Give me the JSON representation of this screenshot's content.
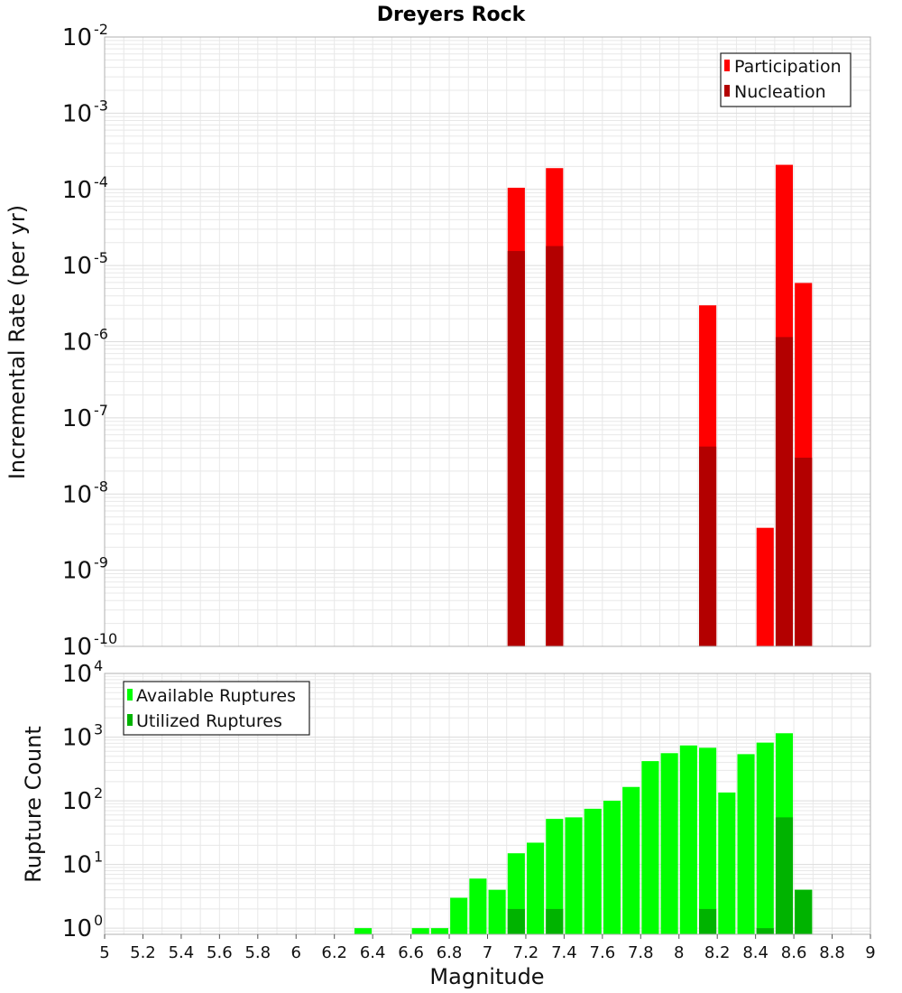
{
  "title": "Dreyers Rock",
  "colors": {
    "participation": "#ff0000",
    "nucleation": "#b30000",
    "available": "#00ff00",
    "utilized": "#00b300"
  },
  "chart_data": [
    {
      "type": "bar",
      "title": "Dreyers Rock",
      "ylabel": "Incremental Rate (per yr)",
      "xlabel": "",
      "yscale": "log",
      "xlim": [
        5,
        9
      ],
      "ylim": [
        1e-10,
        0.01
      ],
      "ytick_exponents": [
        -10,
        -9,
        -8,
        -7,
        -6,
        -5,
        -4,
        -3,
        -2
      ],
      "legend_position": "top-right",
      "bar_width": 0.09,
      "series": [
        {
          "name": "Participation",
          "x": [
            7.15,
            7.35,
            8.15,
            8.45,
            8.55,
            8.65
          ],
          "values": [
            0.000105,
            0.00019,
            3e-06,
            3.6e-09,
            0.00021,
            5.9e-06
          ]
        },
        {
          "name": "Nucleation",
          "x": [
            7.15,
            7.35,
            8.15,
            8.55,
            8.65
          ],
          "values": [
            1.55e-05,
            1.8e-05,
            4.2e-08,
            1.15e-06,
            3e-08
          ]
        }
      ]
    },
    {
      "type": "bar",
      "xlabel": "Magnitude",
      "ylabel": "Rupture Count",
      "yscale": "log",
      "xlim": [
        5,
        9
      ],
      "ylim": [
        0.8,
        10000.0
      ],
      "ytick_exponents": [
        0,
        1,
        2,
        3,
        4
      ],
      "xticks": [
        "5",
        "5.2",
        "5.4",
        "5.6",
        "5.8",
        "6",
        "6.2",
        "6.4",
        "6.6",
        "6.8",
        "7",
        "7.2",
        "7.4",
        "7.6",
        "7.8",
        "8",
        "8.2",
        "8.4",
        "8.6",
        "8.8",
        "9"
      ],
      "legend_position": "top-left",
      "bar_width": 0.09,
      "series": [
        {
          "name": "Available Ruptures",
          "x": [
            6.35,
            6.65,
            6.75,
            6.85,
            6.95,
            7.05,
            7.15,
            7.25,
            7.35,
            7.45,
            7.55,
            7.65,
            7.75,
            7.85,
            7.95,
            8.05,
            8.15,
            8.25,
            8.35,
            8.45,
            8.55,
            8.65
          ],
          "values": [
            1,
            1,
            1,
            3,
            6,
            4,
            15,
            22,
            52,
            55,
            75,
            100,
            165,
            420,
            560,
            740,
            680,
            135,
            540,
            820,
            1150,
            4
          ]
        },
        {
          "name": "Utilized Ruptures",
          "x": [
            7.15,
            7.35,
            8.15,
            8.45,
            8.55,
            8.65
          ],
          "values": [
            2,
            2,
            2,
            1,
            55,
            4
          ]
        }
      ]
    }
  ]
}
